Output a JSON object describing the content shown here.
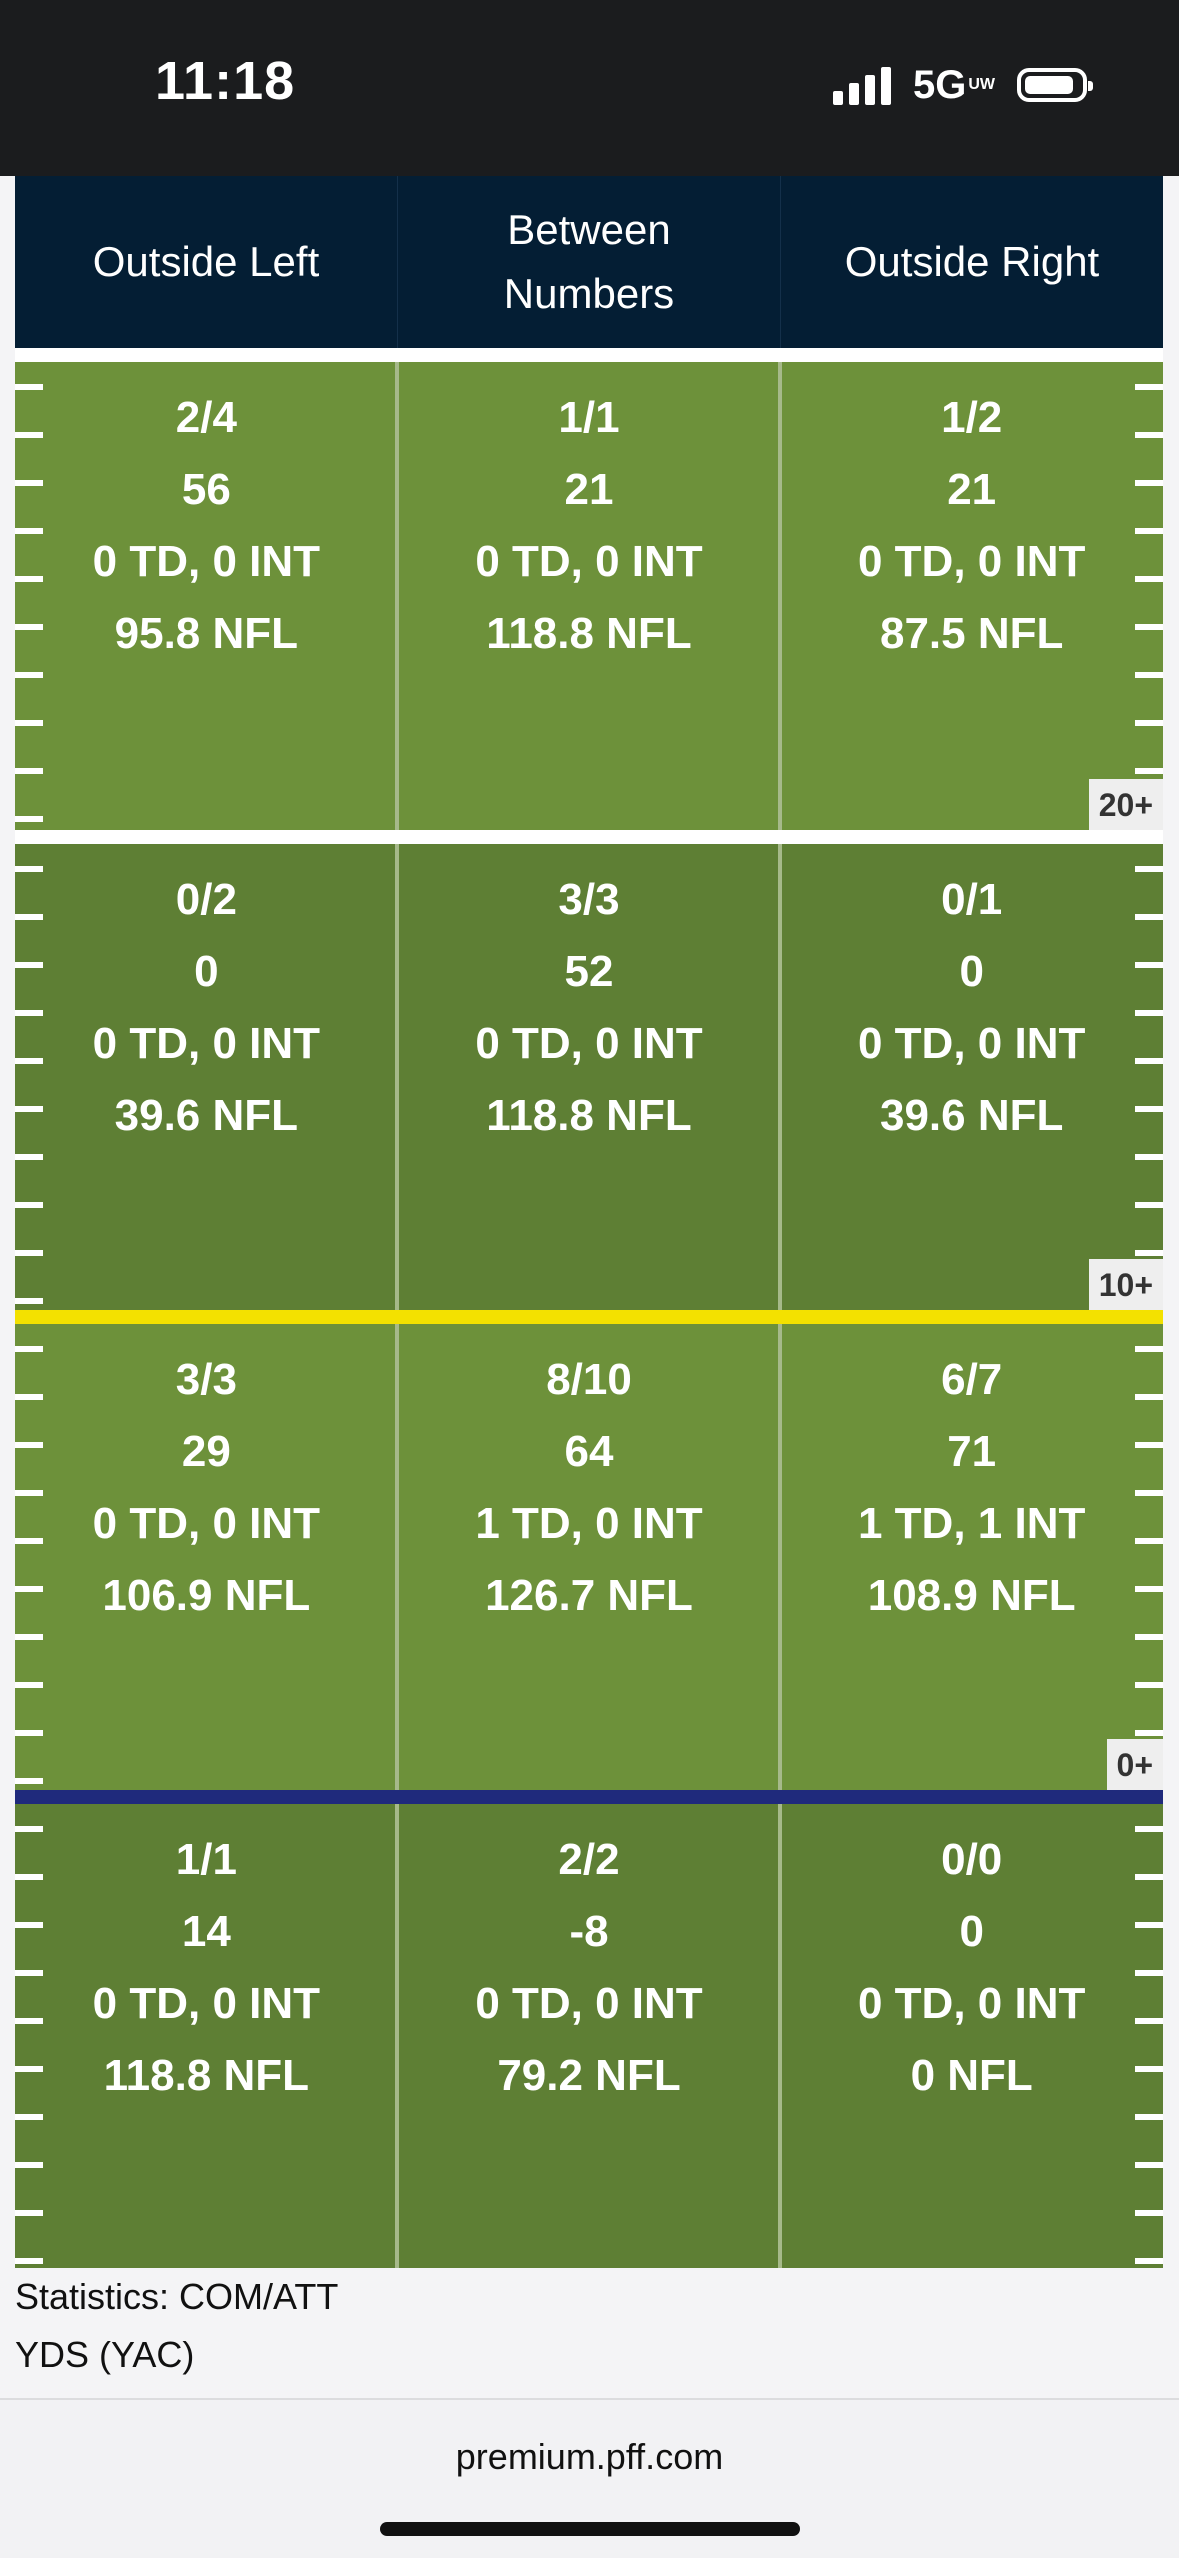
{
  "status_bar": {
    "time": "11:18",
    "network": "5G",
    "network_sub": "UW",
    "signal_bars": 4
  },
  "header": {
    "columns": [
      "Outside Left",
      "Between Numbers",
      "Outside Right"
    ]
  },
  "zones": [
    {
      "yard_marker": "20+",
      "shade": "light",
      "cells": [
        {
          "comp_att": "2/4",
          "yards": "56",
          "td_int": "0 TD, 0 INT",
          "rating": "95.8 NFL"
        },
        {
          "comp_att": "1/1",
          "yards": "21",
          "td_int": "0 TD, 0 INT",
          "rating": "118.8 NFL"
        },
        {
          "comp_att": "1/2",
          "yards": "21",
          "td_int": "0 TD, 0 INT",
          "rating": "87.5 NFL"
        }
      ]
    },
    {
      "yard_marker": "10+",
      "shade": "dark",
      "cells": [
        {
          "comp_att": "0/2",
          "yards": "0",
          "td_int": "0 TD, 0 INT",
          "rating": "39.6 NFL"
        },
        {
          "comp_att": "3/3",
          "yards": "52",
          "td_int": "0 TD, 0 INT",
          "rating": "118.8 NFL"
        },
        {
          "comp_att": "0/1",
          "yards": "0",
          "td_int": "0 TD, 0 INT",
          "rating": "39.6 NFL"
        }
      ]
    },
    {
      "yard_marker": "0+",
      "shade": "light",
      "cells": [
        {
          "comp_att": "3/3",
          "yards": "29",
          "td_int": "0 TD, 0 INT",
          "rating": "106.9 NFL"
        },
        {
          "comp_att": "8/10",
          "yards": "64",
          "td_int": "1 TD, 0 INT",
          "rating": "126.7 NFL"
        },
        {
          "comp_att": "6/7",
          "yards": "71",
          "td_int": "1 TD, 1 INT",
          "rating": "108.9 NFL"
        }
      ]
    },
    {
      "yard_marker": "",
      "shade": "dark",
      "cells": [
        {
          "comp_att": "1/1",
          "yards": "14",
          "td_int": "0 TD, 0 INT",
          "rating": "118.8 NFL"
        },
        {
          "comp_att": "2/2",
          "yards": "-8",
          "td_int": "0 TD, 0 INT",
          "rating": "79.2 NFL"
        },
        {
          "comp_att": "0/0",
          "yards": "0",
          "td_int": "0 TD, 0 INT",
          "rating": "0 NFL"
        }
      ]
    }
  ],
  "legend": {
    "line1": "Statistics: COM/ATT",
    "line2": "YDS (YAC)"
  },
  "browser": {
    "url": "premium.pff.com"
  },
  "colors": {
    "field_light": "#6d913a",
    "field_dark": "#5e7f34",
    "header_bg": "#041e34",
    "first_down_line": "#f3e100",
    "line_of_scrimmage": "#1f2a7c"
  }
}
